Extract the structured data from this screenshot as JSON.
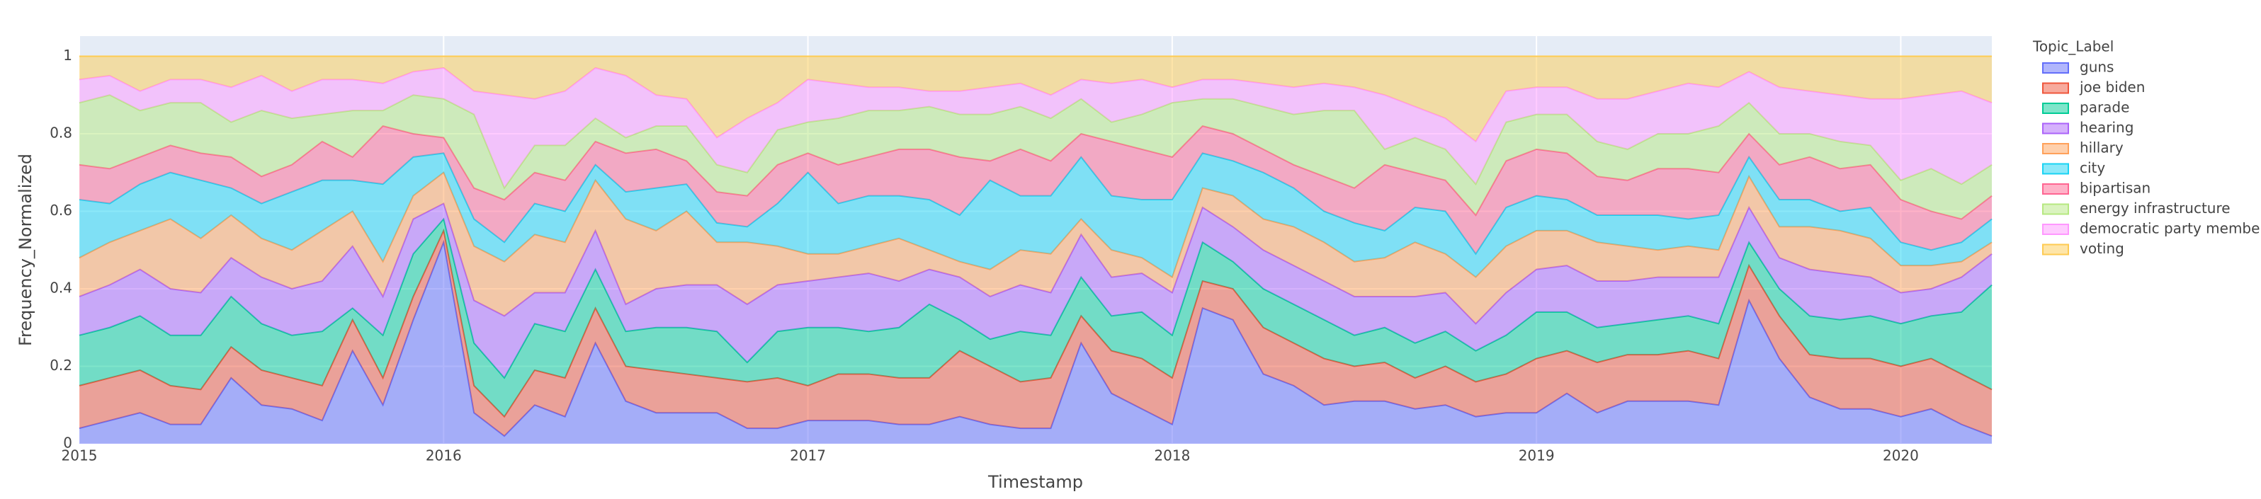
{
  "chart_data": {
    "type": "area",
    "stacked": true,
    "xlabel": "Timestamp",
    "ylabel": "Frequency_Normalized",
    "legend_title": "Topic_Label",
    "legend_position": "right",
    "grid": true,
    "x": [
      "2015-01",
      "2015-02",
      "2015-03",
      "2015-04",
      "2015-05",
      "2015-06",
      "2015-07",
      "2015-08",
      "2015-09",
      "2015-10",
      "2015-11",
      "2015-12",
      "2016-01",
      "2016-02",
      "2016-03",
      "2016-04",
      "2016-05",
      "2016-06",
      "2016-07",
      "2016-08",
      "2016-09",
      "2016-10",
      "2016-11",
      "2016-12",
      "2017-01",
      "2017-02",
      "2017-03",
      "2017-04",
      "2017-05",
      "2017-06",
      "2017-07",
      "2017-08",
      "2017-09",
      "2017-10",
      "2017-11",
      "2017-12",
      "2018-01",
      "2018-02",
      "2018-03",
      "2018-04",
      "2018-05",
      "2018-06",
      "2018-07",
      "2018-08",
      "2018-09",
      "2018-10",
      "2018-11",
      "2018-12",
      "2019-01",
      "2019-02",
      "2019-03",
      "2019-04",
      "2019-05",
      "2019-06",
      "2019-07",
      "2019-08",
      "2019-09",
      "2019-10",
      "2019-11",
      "2019-12",
      "2020-01",
      "2020-02",
      "2020-03",
      "2020-04"
    ],
    "xlim": [
      "2015-01",
      "2020-04"
    ],
    "xticks": [
      {
        "value": "2015-01",
        "label": "2015"
      },
      {
        "value": "2016-01",
        "label": "2016"
      },
      {
        "value": "2017-01",
        "label": "2017"
      },
      {
        "value": "2018-01",
        "label": "2018"
      },
      {
        "value": "2019-01",
        "label": "2019"
      },
      {
        "value": "2020-01",
        "label": "2020"
      }
    ],
    "ylim": [
      0,
      1.052
    ],
    "yticks": [
      0,
      0.2,
      0.4,
      0.6,
      0.8,
      1
    ],
    "series": [
      {
        "name": "guns",
        "color": "#636efa",
        "values": [
          0.04,
          0.06,
          0.08,
          0.05,
          0.05,
          0.17,
          0.1,
          0.09,
          0.06,
          0.24,
          0.1,
          0.32,
          0.52,
          0.08,
          0.02,
          0.1,
          0.07,
          0.26,
          0.11,
          0.08,
          0.08,
          0.08,
          0.04,
          0.04,
          0.06,
          0.06,
          0.06,
          0.05,
          0.05,
          0.07,
          0.05,
          0.04,
          0.04,
          0.26,
          0.13,
          0.09,
          0.05,
          0.35,
          0.32,
          0.18,
          0.15,
          0.1,
          0.11,
          0.11,
          0.09,
          0.1,
          0.07,
          0.08,
          0.08,
          0.13,
          0.08,
          0.11,
          0.11,
          0.11,
          0.1,
          0.37,
          0.22,
          0.12,
          0.09,
          0.09,
          0.07,
          0.09,
          0.05,
          0.02
        ]
      },
      {
        "name": "joe biden",
        "color": "#EF553B",
        "values": [
          0.11,
          0.11,
          0.11,
          0.1,
          0.09,
          0.08,
          0.09,
          0.08,
          0.09,
          0.08,
          0.07,
          0.06,
          0.03,
          0.07,
          0.05,
          0.09,
          0.1,
          0.09,
          0.09,
          0.11,
          0.1,
          0.09,
          0.12,
          0.13,
          0.09,
          0.12,
          0.12,
          0.12,
          0.12,
          0.17,
          0.15,
          0.12,
          0.13,
          0.07,
          0.11,
          0.13,
          0.12,
          0.07,
          0.08,
          0.12,
          0.11,
          0.12,
          0.09,
          0.1,
          0.08,
          0.1,
          0.09,
          0.1,
          0.14,
          0.11,
          0.13,
          0.12,
          0.12,
          0.13,
          0.12,
          0.09,
          0.11,
          0.11,
          0.13,
          0.13,
          0.13,
          0.13,
          0.13,
          0.12
        ]
      },
      {
        "name": "parade",
        "color": "#00cc96",
        "values": [
          0.13,
          0.13,
          0.14,
          0.13,
          0.14,
          0.13,
          0.12,
          0.11,
          0.14,
          0.03,
          0.11,
          0.11,
          0.03,
          0.11,
          0.1,
          0.12,
          0.12,
          0.1,
          0.09,
          0.11,
          0.12,
          0.12,
          0.05,
          0.12,
          0.15,
          0.12,
          0.11,
          0.13,
          0.19,
          0.08,
          0.07,
          0.13,
          0.11,
          0.1,
          0.09,
          0.12,
          0.11,
          0.1,
          0.07,
          0.1,
          0.1,
          0.1,
          0.08,
          0.09,
          0.09,
          0.09,
          0.08,
          0.1,
          0.12,
          0.1,
          0.09,
          0.08,
          0.09,
          0.09,
          0.09,
          0.06,
          0.07,
          0.1,
          0.1,
          0.11,
          0.11,
          0.11,
          0.16,
          0.27
        ]
      },
      {
        "name": "hearing",
        "color": "#ab63fa",
        "values": [
          0.1,
          0.11,
          0.12,
          0.12,
          0.11,
          0.1,
          0.12,
          0.12,
          0.13,
          0.16,
          0.1,
          0.09,
          0.04,
          0.11,
          0.16,
          0.08,
          0.1,
          0.1,
          0.07,
          0.1,
          0.11,
          0.12,
          0.15,
          0.12,
          0.12,
          0.13,
          0.15,
          0.12,
          0.09,
          0.11,
          0.11,
          0.12,
          0.11,
          0.11,
          0.1,
          0.1,
          0.11,
          0.09,
          0.09,
          0.1,
          0.1,
          0.1,
          0.1,
          0.08,
          0.12,
          0.1,
          0.07,
          0.11,
          0.11,
          0.12,
          0.12,
          0.11,
          0.11,
          0.1,
          0.12,
          0.09,
          0.08,
          0.12,
          0.12,
          0.1,
          0.08,
          0.07,
          0.09,
          0.08
        ]
      },
      {
        "name": "hillary",
        "color": "#FFA15A",
        "values": [
          0.1,
          0.11,
          0.1,
          0.18,
          0.14,
          0.11,
          0.1,
          0.1,
          0.13,
          0.09,
          0.09,
          0.06,
          0.08,
          0.14,
          0.14,
          0.15,
          0.13,
          0.13,
          0.22,
          0.15,
          0.19,
          0.11,
          0.16,
          0.1,
          0.07,
          0.06,
          0.07,
          0.11,
          0.05,
          0.04,
          0.07,
          0.09,
          0.1,
          0.04,
          0.07,
          0.04,
          0.04,
          0.05,
          0.08,
          0.08,
          0.1,
          0.1,
          0.09,
          0.1,
          0.14,
          0.1,
          0.12,
          0.12,
          0.1,
          0.09,
          0.1,
          0.09,
          0.07,
          0.08,
          0.07,
          0.08,
          0.08,
          0.11,
          0.11,
          0.1,
          0.07,
          0.06,
          0.04,
          0.03
        ]
      },
      {
        "name": "city",
        "color": "#19d3f3",
        "values": [
          0.15,
          0.1,
          0.12,
          0.12,
          0.15,
          0.07,
          0.09,
          0.15,
          0.13,
          0.08,
          0.2,
          0.1,
          0.05,
          0.07,
          0.05,
          0.08,
          0.08,
          0.04,
          0.07,
          0.11,
          0.07,
          0.05,
          0.04,
          0.11,
          0.21,
          0.13,
          0.13,
          0.11,
          0.13,
          0.12,
          0.23,
          0.14,
          0.15,
          0.16,
          0.14,
          0.15,
          0.2,
          0.09,
          0.09,
          0.12,
          0.1,
          0.08,
          0.1,
          0.07,
          0.09,
          0.11,
          0.06,
          0.1,
          0.09,
          0.08,
          0.07,
          0.08,
          0.09,
          0.07,
          0.09,
          0.05,
          0.07,
          0.07,
          0.05,
          0.08,
          0.06,
          0.04,
          0.05,
          0.06
        ]
      },
      {
        "name": "bipartisan",
        "color": "#FF6692",
        "values": [
          0.09,
          0.09,
          0.07,
          0.07,
          0.07,
          0.08,
          0.07,
          0.07,
          0.1,
          0.06,
          0.15,
          0.06,
          0.04,
          0.08,
          0.11,
          0.08,
          0.08,
          0.06,
          0.1,
          0.1,
          0.06,
          0.08,
          0.08,
          0.1,
          0.05,
          0.1,
          0.1,
          0.12,
          0.13,
          0.15,
          0.05,
          0.12,
          0.09,
          0.06,
          0.14,
          0.13,
          0.11,
          0.07,
          0.07,
          0.06,
          0.06,
          0.09,
          0.09,
          0.17,
          0.09,
          0.08,
          0.1,
          0.12,
          0.12,
          0.12,
          0.1,
          0.09,
          0.12,
          0.13,
          0.11,
          0.06,
          0.09,
          0.11,
          0.11,
          0.11,
          0.11,
          0.1,
          0.06,
          0.06
        ]
      },
      {
        "name": "energy infrastructure",
        "color": "#B6E880",
        "values": [
          0.16,
          0.19,
          0.12,
          0.11,
          0.13,
          0.09,
          0.17,
          0.12,
          0.07,
          0.12,
          0.04,
          0.1,
          0.1,
          0.19,
          0.03,
          0.07,
          0.09,
          0.06,
          0.04,
          0.06,
          0.09,
          0.07,
          0.06,
          0.09,
          0.08,
          0.12,
          0.12,
          0.1,
          0.11,
          0.11,
          0.12,
          0.11,
          0.11,
          0.09,
          0.05,
          0.09,
          0.14,
          0.07,
          0.09,
          0.11,
          0.13,
          0.17,
          0.2,
          0.04,
          0.09,
          0.08,
          0.08,
          0.1,
          0.09,
          0.1,
          0.09,
          0.08,
          0.09,
          0.09,
          0.12,
          0.08,
          0.08,
          0.06,
          0.07,
          0.05,
          0.05,
          0.11,
          0.09,
          0.08
        ]
      },
      {
        "name": "democratic party members",
        "color": "#FF97FF",
        "values": [
          0.06,
          0.05,
          0.05,
          0.06,
          0.06,
          0.09,
          0.09,
          0.07,
          0.09,
          0.08,
          0.07,
          0.06,
          0.08,
          0.06,
          0.24,
          0.12,
          0.14,
          0.13,
          0.16,
          0.08,
          0.07,
          0.07,
          0.14,
          0.07,
          0.11,
          0.09,
          0.06,
          0.06,
          0.04,
          0.06,
          0.07,
          0.06,
          0.06,
          0.05,
          0.1,
          0.09,
          0.04,
          0.05,
          0.05,
          0.06,
          0.07,
          0.07,
          0.06,
          0.14,
          0.08,
          0.08,
          0.11,
          0.08,
          0.07,
          0.07,
          0.11,
          0.13,
          0.11,
          0.13,
          0.1,
          0.08,
          0.12,
          0.11,
          0.12,
          0.12,
          0.21,
          0.19,
          0.24,
          0.16
        ]
      },
      {
        "name": "voting",
        "color": "#FECB52",
        "values": [
          0.06,
          0.05,
          0.09,
          0.06,
          0.06,
          0.08,
          0.05,
          0.09,
          0.06,
          0.06,
          0.07,
          0.04,
          0.03,
          0.09,
          0.1,
          0.11,
          0.09,
          0.03,
          0.05,
          0.1,
          0.11,
          0.21,
          0.16,
          0.12,
          0.06,
          0.07,
          0.08,
          0.08,
          0.09,
          0.09,
          0.08,
          0.07,
          0.1,
          0.06,
          0.07,
          0.06,
          0.08,
          0.06,
          0.06,
          0.07,
          0.08,
          0.07,
          0.08,
          0.1,
          0.13,
          0.16,
          0.22,
          0.09,
          0.08,
          0.08,
          0.11,
          0.11,
          0.09,
          0.07,
          0.08,
          0.04,
          0.08,
          0.09,
          0.1,
          0.11,
          0.11,
          0.1,
          0.09,
          0.12
        ]
      }
    ]
  }
}
